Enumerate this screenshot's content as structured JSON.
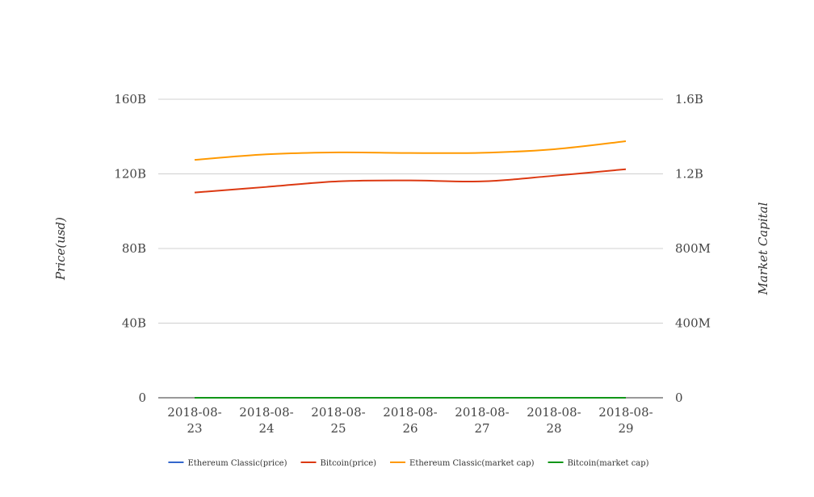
{
  "chart_data": {
    "type": "line",
    "title": "",
    "x": [
      "2018-08-23",
      "2018-08-24",
      "2018-08-25",
      "2018-08-26",
      "2018-08-27",
      "2018-08-28",
      "2018-08-29"
    ],
    "x_tick_labels": [
      [
        "2018-08-",
        "23"
      ],
      [
        "2018-08-",
        "24"
      ],
      [
        "2018-08-",
        "25"
      ],
      [
        "2018-08-",
        "26"
      ],
      [
        "2018-08-",
        "27"
      ],
      [
        "2018-08-",
        "28"
      ],
      [
        "2018-08-",
        "29"
      ]
    ],
    "ylabel": "Price(usd)",
    "y2label": "Market Capital",
    "ylim": [
      0,
      160000000000
    ],
    "y2lim": [
      0,
      1600000000
    ],
    "y_ticks": [
      0,
      40000000000,
      80000000000,
      120000000000,
      160000000000
    ],
    "y_tick_labels": [
      "0",
      "40B",
      "80B",
      "120B",
      "160B"
    ],
    "y2_ticks": [
      0,
      400000000,
      800000000,
      1200000000,
      1600000000
    ],
    "y2_tick_labels": [
      "0",
      "400M",
      "800M",
      "1.2B",
      "1.6B"
    ],
    "grid": true,
    "legend_position": "bottom",
    "series": [
      {
        "name": "Ethereum Classic(price)",
        "axis": "left",
        "color": "#3366cc",
        "values": [
          13,
          13,
          13,
          13,
          12.5,
          12.8,
          13
        ]
      },
      {
        "name": "Bitcoin(price)",
        "axis": "left",
        "color": "#dc3912",
        "values": [
          110000000000,
          113000000000,
          116000000000,
          116500000000,
          116000000000,
          119000000000,
          122500000000
        ]
      },
      {
        "name": "Ethereum Classic(market cap)",
        "axis": "right",
        "color": "#ff9900",
        "values": [
          1275000000,
          1305000000,
          1315000000,
          1312000000,
          1313000000,
          1332000000,
          1375000000
        ]
      },
      {
        "name": "Bitcoin(market cap)",
        "axis": "right",
        "color": "#109618",
        "values": [
          110000,
          113000,
          116000,
          116500,
          116000,
          119000,
          122500
        ]
      }
    ]
  }
}
